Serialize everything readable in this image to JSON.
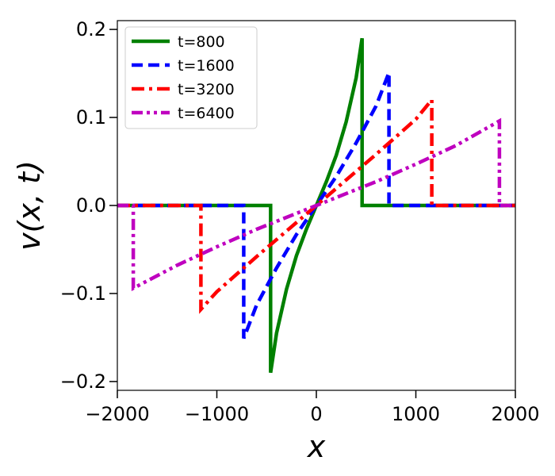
{
  "chart_data": {
    "type": "line",
    "title": "",
    "xlabel": "x",
    "ylabel": "v(x, t)",
    "xlim": [
      -2000,
      2000
    ],
    "ylim": [
      -0.21,
      0.21
    ],
    "xticks": [
      -2000,
      -1000,
      0,
      1000,
      2000
    ],
    "xtick_labels": [
      "−2000",
      "−1000",
      "0",
      "1000",
      "2000"
    ],
    "yticks": [
      -0.2,
      -0.1,
      0.0,
      0.1,
      0.2
    ],
    "ytick_labels": [
      "−0.2",
      "−0.1",
      "0.0",
      "0.1",
      "0.2"
    ],
    "grid": false,
    "legend_position": "top-left",
    "series": [
      {
        "name": "t=800",
        "color": "#008000",
        "dash": "solid",
        "x": [
          -2000,
          -460,
          -460,
          -400,
          -300,
          -200,
          -100,
          0,
          100,
          200,
          300,
          400,
          460,
          460,
          2000
        ],
        "y": [
          0,
          0,
          -0.19,
          -0.145,
          -0.095,
          -0.057,
          -0.027,
          0,
          0.027,
          0.057,
          0.095,
          0.145,
          0.19,
          0,
          0
        ]
      },
      {
        "name": "t=1600",
        "color": "#0000ff",
        "dash": "dashed",
        "x": [
          -2000,
          -730,
          -730,
          -600,
          -400,
          -200,
          0,
          200,
          400,
          600,
          730,
          730,
          2000
        ],
        "y": [
          0,
          0,
          -0.151,
          -0.113,
          -0.071,
          -0.033,
          0,
          0.033,
          0.071,
          0.113,
          0.151,
          0,
          0
        ]
      },
      {
        "name": "t=3200",
        "color": "#ff0000",
        "dash": "dashdot",
        "x": [
          -2000,
          -1160,
          -1160,
          -1000,
          -600,
          -300,
          0,
          300,
          600,
          1000,
          1160,
          1160,
          2000
        ],
        "y": [
          0,
          0,
          -0.118,
          -0.098,
          -0.058,
          -0.029,
          0,
          0.029,
          0.058,
          0.098,
          0.12,
          0,
          0
        ]
      },
      {
        "name": "t=6400",
        "color": "#bf00bf",
        "dash": "dashdotdot",
        "x": [
          -2000,
          -1840,
          -1840,
          -1400,
          -1000,
          -600,
          0,
          600,
          1000,
          1400,
          1840,
          1840,
          2000
        ],
        "y": [
          0,
          0,
          -0.094,
          -0.068,
          -0.047,
          -0.027,
          0,
          0.027,
          0.047,
          0.068,
          0.096,
          0,
          0
        ]
      }
    ]
  }
}
